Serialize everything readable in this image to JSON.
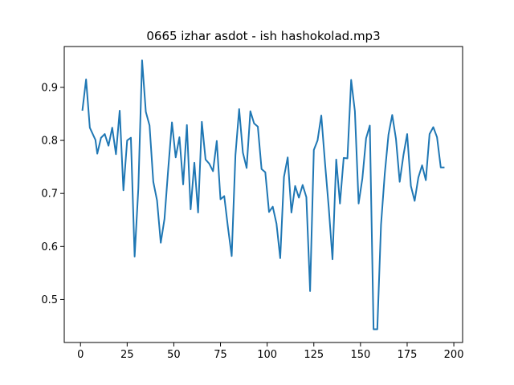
{
  "chart_data": {
    "type": "line",
    "title": "0665 izhar asdot - ish hashokolad.mp3",
    "xlabel": "",
    "ylabel": "",
    "xlim": [
      -8.7,
      204.7
    ],
    "ylim": [
      0.419,
      0.977
    ],
    "xticks": [
      0,
      25,
      50,
      75,
      100,
      125,
      150,
      175,
      200
    ],
    "yticks": [
      0.5,
      0.6,
      0.7,
      0.8,
      0.9
    ],
    "xtick_labels": [
      "0",
      "25",
      "50",
      "75",
      "100",
      "125",
      "150",
      "175",
      "200"
    ],
    "ytick_labels": [
      "0.5",
      "0.6",
      "0.7",
      "0.8",
      "0.9"
    ],
    "grid": false,
    "series": [
      {
        "color": "#1f77b4",
        "x": [
          1,
          3,
          5,
          8,
          9,
          11,
          13,
          15,
          17,
          19,
          21,
          23,
          25,
          27,
          29,
          31,
          33,
          35,
          37,
          39,
          41,
          43,
          45,
          47,
          49,
          51,
          53,
          55,
          57,
          59,
          61,
          63,
          65,
          67,
          69,
          71,
          73,
          75,
          77,
          79,
          81,
          83,
          85,
          87,
          89,
          91,
          93,
          95,
          97,
          99,
          101,
          103,
          105,
          107,
          109,
          111,
          113,
          115,
          117,
          119,
          121,
          123,
          125,
          127,
          129,
          131,
          133,
          135,
          137,
          139,
          141,
          143,
          145,
          147,
          149,
          151,
          153,
          155,
          157,
          159,
          161,
          163,
          165,
          167,
          169,
          171,
          173,
          175,
          177,
          179,
          181,
          183,
          185,
          187,
          189,
          191,
          193,
          195
        ],
        "y": [
          0.856,
          0.915,
          0.824,
          0.801,
          0.775,
          0.805,
          0.812,
          0.79,
          0.824,
          0.774,
          0.856,
          0.706,
          0.8,
          0.805,
          0.581,
          0.71,
          0.951,
          0.854,
          0.828,
          0.722,
          0.687,
          0.607,
          0.652,
          0.746,
          0.834,
          0.768,
          0.806,
          0.717,
          0.829,
          0.67,
          0.758,
          0.664,
          0.835,
          0.764,
          0.756,
          0.742,
          0.799,
          0.689,
          0.695,
          0.636,
          0.582,
          0.772,
          0.859,
          0.777,
          0.748,
          0.855,
          0.832,
          0.826,
          0.746,
          0.74,
          0.665,
          0.675,
          0.643,
          0.578,
          0.731,
          0.768,
          0.664,
          0.714,
          0.692,
          0.716,
          0.693,
          0.516,
          0.782,
          0.8,
          0.847,
          0.757,
          0.673,
          0.576,
          0.764,
          0.681,
          0.767,
          0.766,
          0.914,
          0.855,
          0.681,
          0.728,
          0.804,
          0.828,
          0.444,
          0.444,
          0.641,
          0.737,
          0.811,
          0.848,
          0.803,
          0.722,
          0.772,
          0.812,
          0.714,
          0.686,
          0.73,
          0.753,
          0.725,
          0.812,
          0.825,
          0.806,
          0.749,
          0.749
        ]
      }
    ]
  }
}
